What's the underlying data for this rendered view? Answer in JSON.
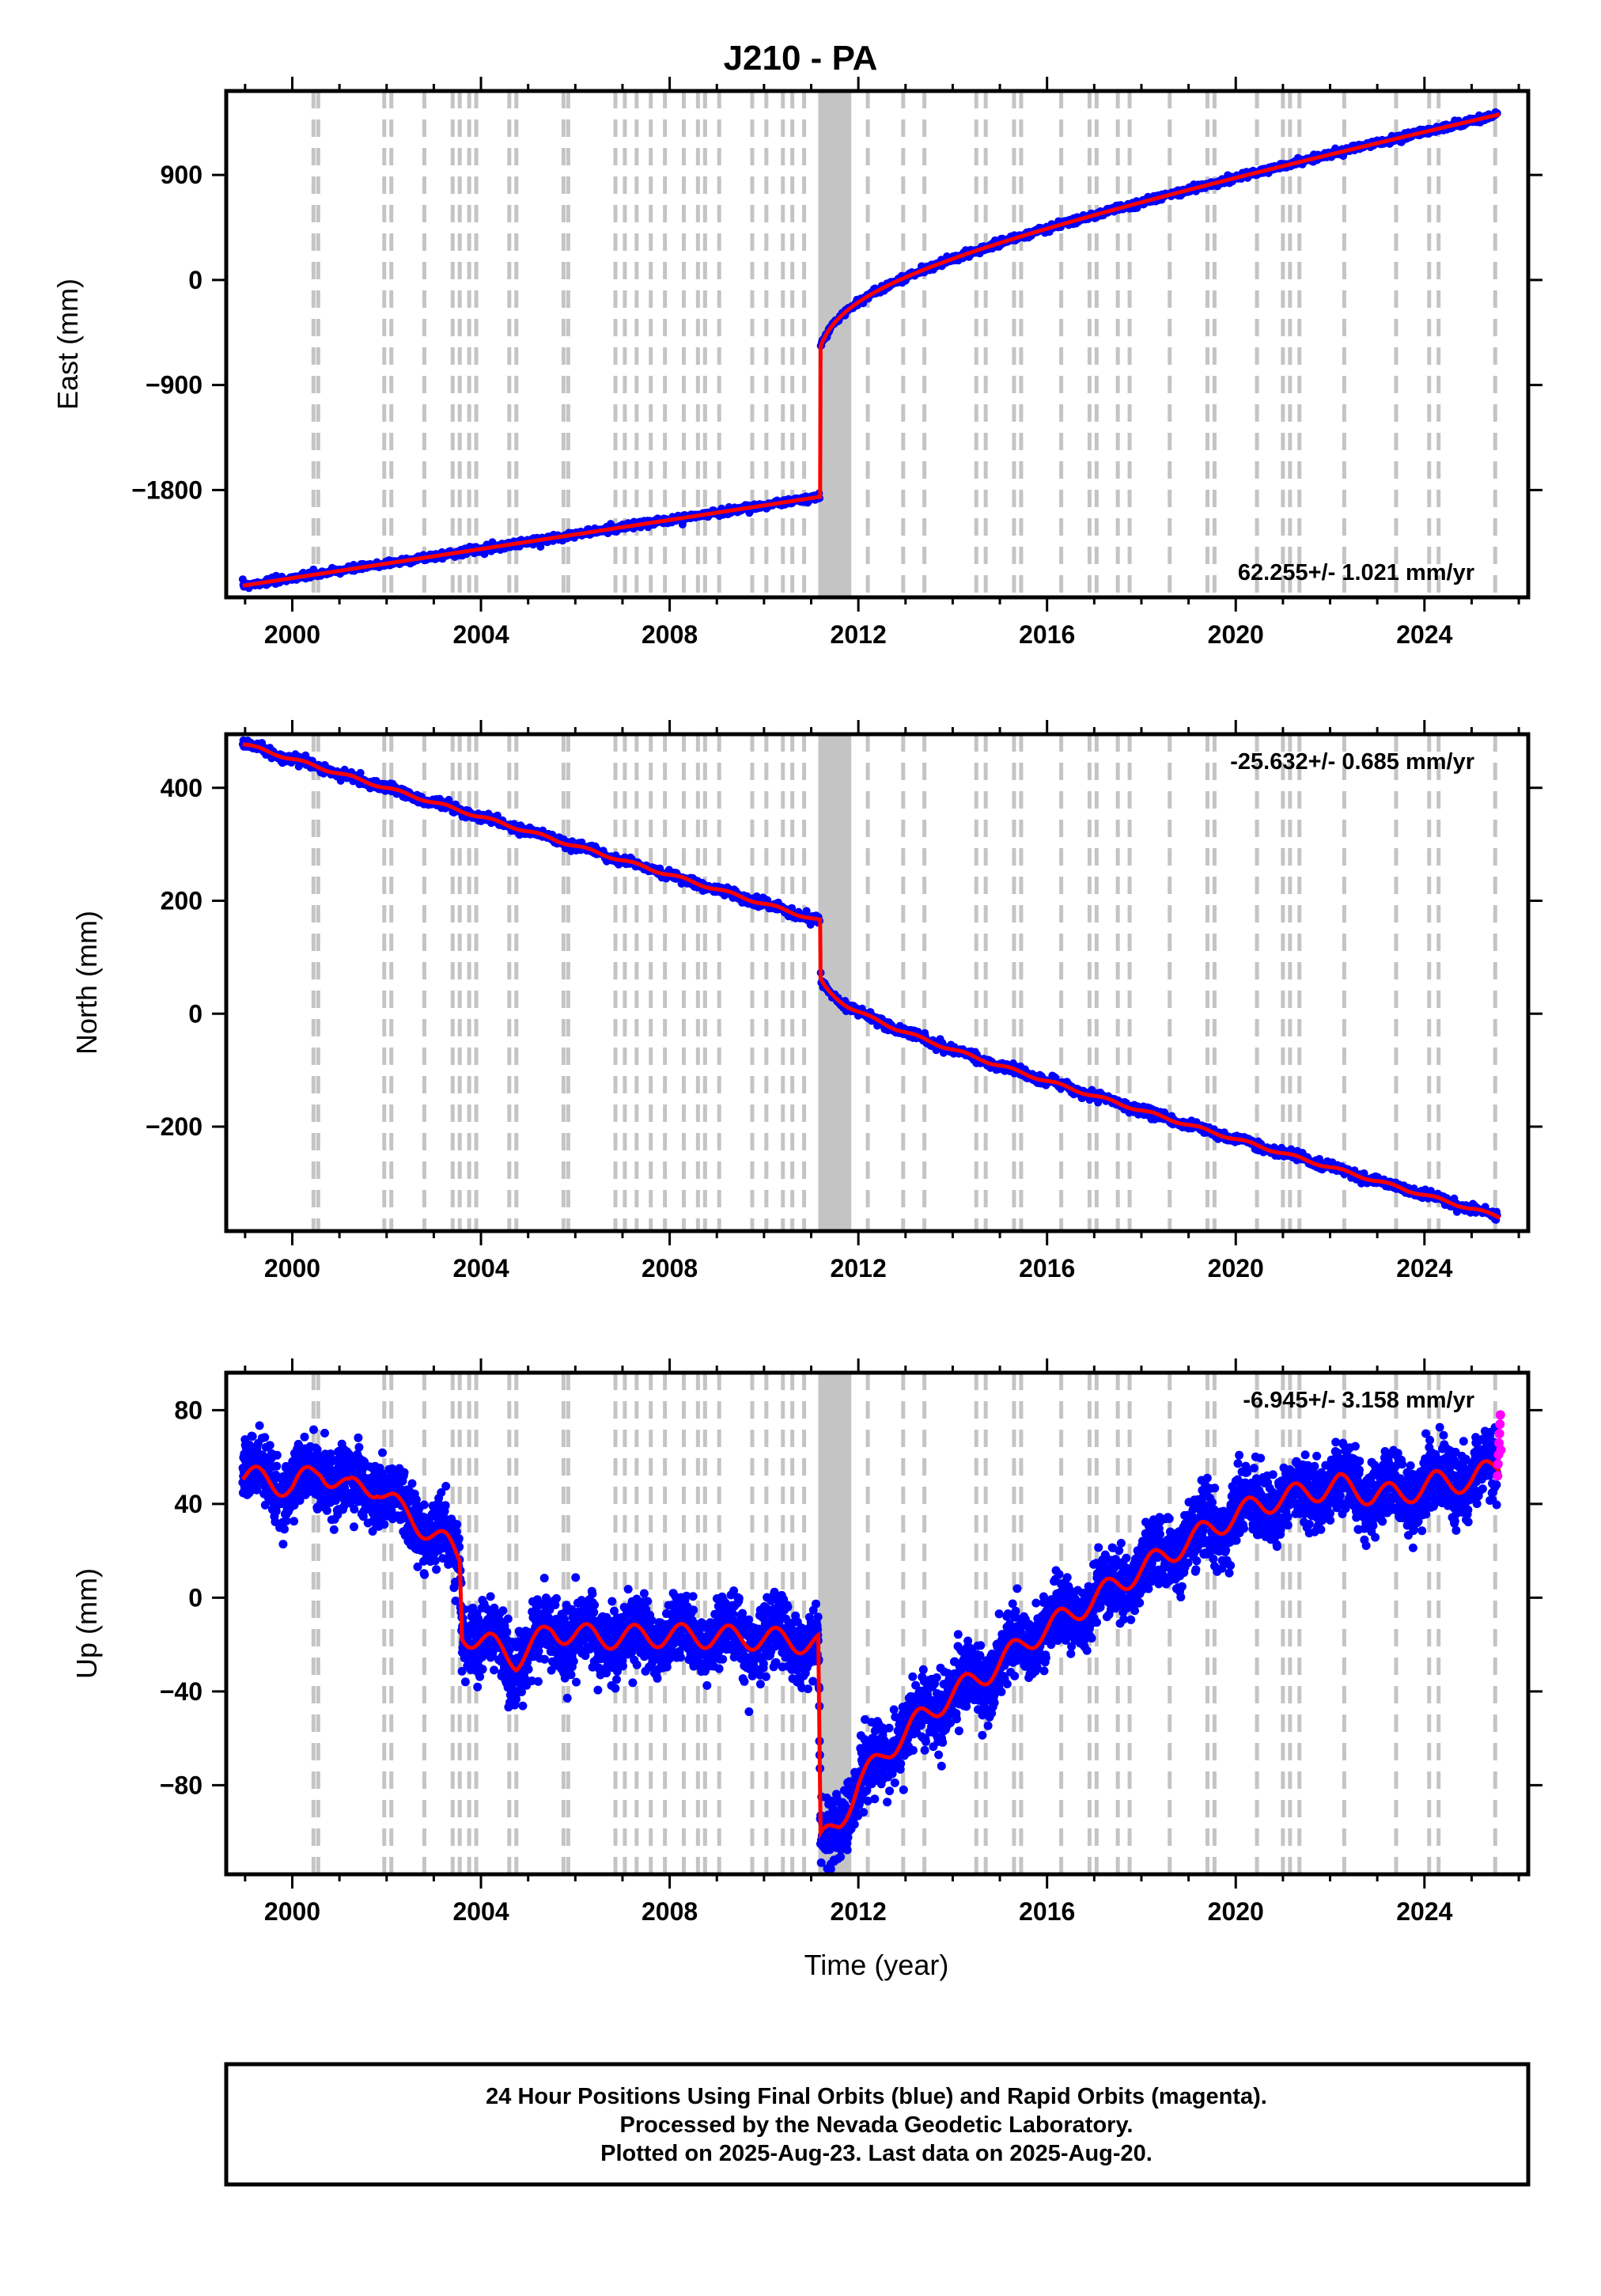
{
  "title": "J210 - PA",
  "colors": {
    "final": "#0000ff",
    "rapid": "#ff00ff",
    "model": "#ff0000",
    "step": "#c4c4c4",
    "axis": "#000000"
  },
  "x_axis": {
    "label": "Time (year)",
    "ticks": [
      2000,
      2004,
      2008,
      2012,
      2016,
      2020,
      2024
    ],
    "range": [
      1998.6,
      2026.2
    ]
  },
  "footer": {
    "line1": "24 Hour Positions Using Final Orbits (blue) and Rapid Orbits (magenta).",
    "line2": "Processed by the Nevada Geodetic Laboratory.",
    "line3": "Plotted on 2025-Aug-23. Last data on 2025-Aug-20."
  },
  "step_dates": [
    2000.45,
    2000.55,
    2001.95,
    2002.1,
    2002.8,
    2003.4,
    2003.55,
    2003.75,
    2003.9,
    2004.6,
    2004.75,
    2005.75,
    2005.85,
    2006.85,
    2007.05,
    2007.3,
    2007.6,
    2007.9,
    2008.3,
    2008.6,
    2008.75,
    2009.05,
    2009.75,
    2010.05,
    2010.4,
    2010.6,
    2010.85,
    2012.2,
    2012.95,
    2013.4,
    2014.5,
    2014.7,
    2015.3,
    2015.45,
    2016.3,
    2016.9,
    2017.05,
    2017.5,
    2017.75,
    2018.6,
    2019.4,
    2019.55,
    2020.45,
    2021.0,
    2021.15,
    2021.35,
    2022.3,
    2023.4,
    2024.1,
    2024.3,
    2025.5
  ],
  "step_block": [
    2011.15,
    2011.85
  ],
  "chart_data": [
    {
      "type": "scatter",
      "component": "East",
      "ylabel": "East (mm)",
      "yticks": [
        900,
        0,
        -900,
        -1800
      ],
      "ylim": [
        -2720,
        1620
      ],
      "rate_label": "62.255+/- 1.021 mm/yr",
      "model": {
        "start": 1998.95,
        "end": 2025.6,
        "jump_date": 2011.19,
        "pre": {
          "offset": -2620,
          "rate": 62.255
        },
        "post": {
          "offset": 1420,
          "rate": 62.255,
          "log_amp": 190,
          "log_tau": 0.18
        },
        "jump_to": -580,
        "seasonal": {
          "amp": 0
        }
      },
      "scatter_noise_mm": 14
    },
    {
      "type": "scatter",
      "component": "North",
      "ylabel": "North (mm)",
      "yticks": [
        400,
        200,
        0,
        -200
      ],
      "ylim": [
        -385,
        495
      ],
      "rate_label": "-25.632+/- 0.685 mm/yr",
      "model": {
        "start": 1998.95,
        "end": 2025.6,
        "jump_date": 2011.19,
        "pre": {
          "offset": 478,
          "rate": -25.632
        },
        "post": {
          "offset": -360,
          "rate": -25.632,
          "log_amp": -18,
          "log_tau": 0.1
        },
        "jump_to": 62,
        "seasonal": {
          "amp": 2.5
        }
      },
      "scatter_noise_mm": 4
    },
    {
      "type": "scatter",
      "component": "Up",
      "ylabel": "Up (mm)",
      "yticks": [
        80,
        40,
        0,
        -40,
        -80
      ],
      "ylim": [
        -118,
        96
      ],
      "rate_label": "-6.945+/- 3.158 mm/yr",
      "model_points": [
        [
          1998.95,
          52
        ],
        [
          1999.5,
          50
        ],
        [
          2000.0,
          47
        ],
        [
          2000.6,
          55
        ],
        [
          2001.2,
          46
        ],
        [
          2001.8,
          48
        ],
        [
          2002.3,
          37
        ],
        [
          2002.8,
          30
        ],
        [
          2003.3,
          22
        ],
        [
          2003.55,
          17
        ],
        [
          2003.6,
          -15
        ],
        [
          2004.2,
          -20
        ],
        [
          2004.75,
          -26
        ],
        [
          2005.5,
          -14
        ],
        [
          2006.5,
          -17
        ],
        [
          2008.0,
          -16
        ],
        [
          2009.5,
          -17
        ],
        [
          2010.5,
          -18
        ],
        [
          2011.15,
          -20
        ],
        [
          2011.2,
          -105
        ],
        [
          2011.6,
          -95
        ],
        [
          2012.0,
          -80
        ],
        [
          2012.6,
          -65
        ],
        [
          2013.3,
          -52
        ],
        [
          2014.0,
          -41
        ],
        [
          2014.8,
          -31
        ],
        [
          2015.6,
          -18
        ],
        [
          2016.5,
          -7
        ],
        [
          2017.5,
          6
        ],
        [
          2018.5,
          18
        ],
        [
          2019.5,
          30
        ],
        [
          2020.5,
          40
        ],
        [
          2021.5,
          45
        ],
        [
          2022.2,
          48
        ],
        [
          2022.9,
          44
        ],
        [
          2023.5,
          44
        ],
        [
          2024.2,
          49
        ],
        [
          2025.0,
          50
        ],
        [
          2025.6,
          57
        ]
      ],
      "seasonal_amp": 5,
      "scatter_noise_mm": 7,
      "rapid_points": [
        [
          2025.55,
          52
        ],
        [
          2025.56,
          57
        ],
        [
          2025.57,
          61
        ],
        [
          2025.58,
          66
        ],
        [
          2025.59,
          70
        ],
        [
          2025.6,
          74
        ],
        [
          2025.61,
          78
        ],
        [
          2025.62,
          63
        ]
      ]
    }
  ]
}
